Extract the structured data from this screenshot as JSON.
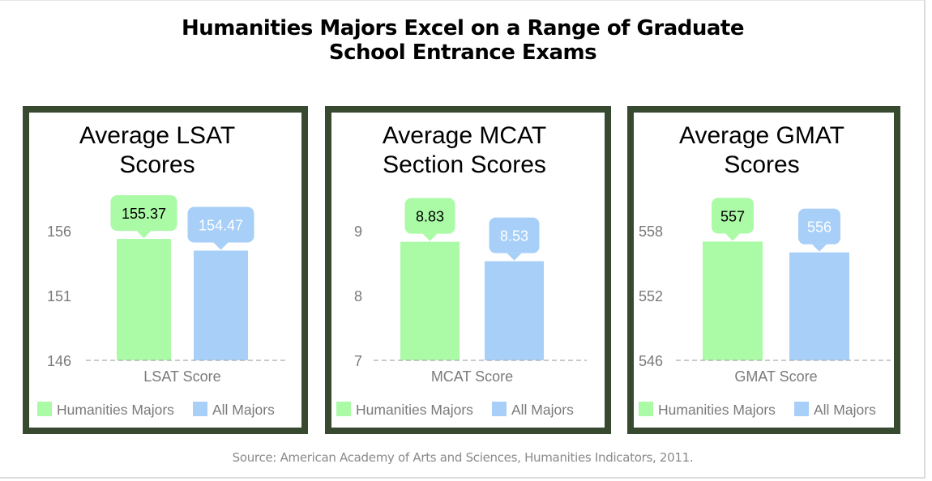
{
  "title": "Humanities Majors Excel on a Range of Graduate School Entrance Exams",
  "title_lines": [
    "Humanities Majors Excel on a Range of Graduate",
    "School Entrance Exams"
  ],
  "source": "Source:  American Academy of Arts and Sciences, Humanities Indicators, 2011.",
  "colors": {
    "humanities": "#aafaa6",
    "all": "#a7cff8",
    "border": "#374a30",
    "axis_text": "#7a7a7a"
  },
  "chart_data": [
    {
      "type": "bar",
      "title_lines": [
        "Average LSAT",
        "Scores"
      ],
      "xlabel": "LSAT Score",
      "ylim": [
        146,
        156
      ],
      "yticks": [
        "146",
        "151",
        "156"
      ],
      "ytick_values": [
        146,
        151,
        156
      ],
      "series": [
        {
          "name": "Humanities Majors",
          "values": [
            155.37
          ],
          "label": "155.37"
        },
        {
          "name": "All Majors",
          "values": [
            154.47
          ],
          "label": "154.47"
        }
      ],
      "legend": [
        "Humanities Majors",
        "All Majors"
      ],
      "legend_position": "bottom"
    },
    {
      "type": "bar",
      "title_lines": [
        "Average MCAT",
        "Section Scores"
      ],
      "xlabel": "MCAT Score",
      "ylim": [
        7,
        9
      ],
      "yticks": [
        "7",
        "8",
        "9"
      ],
      "ytick_values": [
        7,
        8,
        9
      ],
      "series": [
        {
          "name": "Humanities Majors",
          "values": [
            8.83
          ],
          "label": "8.83"
        },
        {
          "name": "All Majors",
          "values": [
            8.53
          ],
          "label": "8.53"
        }
      ],
      "legend": [
        "Humanities Majors",
        "All Majors"
      ],
      "legend_position": "bottom"
    },
    {
      "type": "bar",
      "title_lines": [
        "Average GMAT",
        "Scores"
      ],
      "xlabel": "GMAT Score",
      "ylim": [
        546,
        558
      ],
      "yticks": [
        "546",
        "552",
        "558"
      ],
      "ytick_values": [
        546,
        552,
        558
      ],
      "series": [
        {
          "name": "Humanities Majors",
          "values": [
            557
          ],
          "label": "557"
        },
        {
          "name": "All Majors",
          "values": [
            556
          ],
          "label": "556"
        }
      ],
      "legend": [
        "Humanities Majors",
        "All Majors"
      ],
      "legend_position": "bottom"
    }
  ]
}
